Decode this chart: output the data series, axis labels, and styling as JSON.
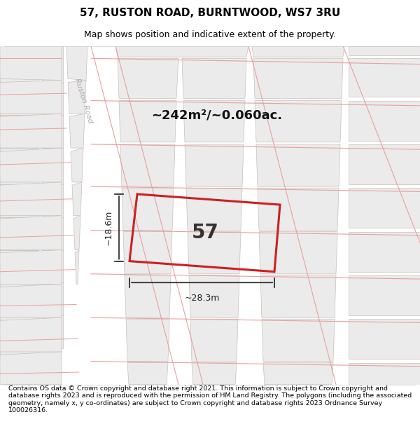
{
  "title": "57, RUSTON ROAD, BURNTWOOD, WS7 3RU",
  "subtitle": "Map shows position and indicative extent of the property.",
  "area_text": "~242m²/~0.060ac.",
  "label_57": "57",
  "dim_width": "~28.3m",
  "dim_height": "~18.6m",
  "footer": "Contains OS data © Crown copyright and database right 2021. This information is subject to Crown copyright and database rights 2023 and is reproduced with the permission of HM Land Registry. The polygons (including the associated geometry, namely x, y co-ordinates) are subject to Crown copyright and database rights 2023 Ordnance Survey 100026316.",
  "map_bg": "#ffffff",
  "block_fill": "#ebebeb",
  "block_stroke": "#c8bfb8",
  "road_line_color": "#e8a0a0",
  "highlight_stroke": "#cc2020",
  "title_fontsize": 11,
  "subtitle_fontsize": 9,
  "footer_fontsize": 6.8,
  "road_label_color": "#b0b0b0",
  "dim_color": "#222222",
  "label_color": "#333333"
}
